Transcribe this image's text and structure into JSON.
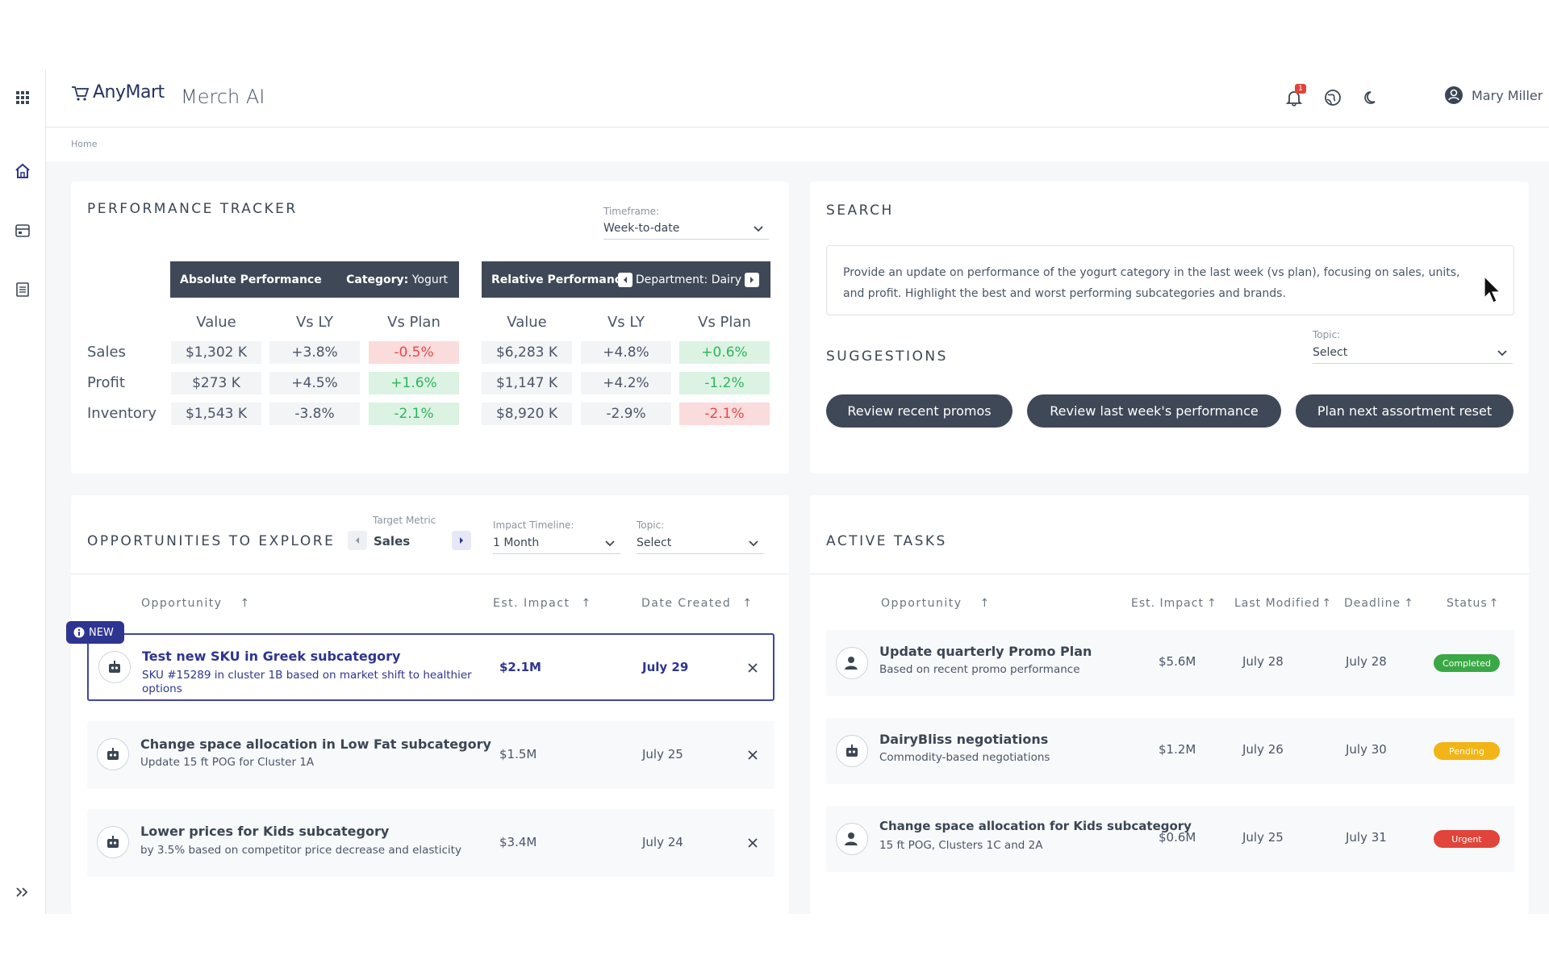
{
  "header": {
    "logo_text": "AnyMart",
    "app_name": "Merch AI",
    "notification_count": "1",
    "user_name": "Mary Miller"
  },
  "breadcrumb": {
    "home": "Home"
  },
  "performance": {
    "title": "PERFORMANCE TRACKER",
    "timeframe_label": "Timeframe:",
    "timeframe_value": "Week-to-date",
    "absolute": {
      "label": "Absolute Performance",
      "category_key": "Category:",
      "category_value": "Yogurt"
    },
    "relative": {
      "label": "Relative Performance",
      "department": "Department: Dairy"
    },
    "columns": [
      "Value",
      "Vs LY",
      "Vs Plan"
    ],
    "rows": [
      {
        "label": "Sales",
        "abs": [
          "$1,302 K",
          "+3.8%",
          "-0.5%"
        ],
        "rel": [
          "$6,283 K",
          "+4.8%",
          "+0.6%"
        ]
      },
      {
        "label": "Profit",
        "abs": [
          "$273 K",
          "+4.5%",
          "+1.6%"
        ],
        "rel": [
          "$1,147 K",
          "+4.2%",
          "-1.2%"
        ]
      },
      {
        "label": "Inventory",
        "abs": [
          "$1,543 K",
          "-3.8%",
          "-2.1%"
        ],
        "rel": [
          "$8,920 K",
          "-2.9%",
          "-2.1%"
        ]
      }
    ]
  },
  "search": {
    "title": "SEARCH",
    "query": "Provide an update on performance of the yogurt category in the last week (vs plan), focusing on sales, units, and profit. Highlight the best and worst performing subcategories and brands."
  },
  "suggestions": {
    "title": "SUGGESTIONS",
    "topic_label": "Topic:",
    "topic_value": "Select",
    "buttons": [
      "Review recent promos",
      "Review last week's performance",
      "Plan next assortment reset"
    ]
  },
  "opportunities": {
    "title": "OPPORTUNITIES TO EXPLORE",
    "target_metric_label": "Target Metric",
    "target_metric_value": "Sales",
    "timeline_label": "Impact Timeline:",
    "timeline_value": "1 Month",
    "topic_label": "Topic:",
    "topic_value": "Select",
    "headers": [
      "Opportunity",
      "Est. Impact",
      "Date Created"
    ],
    "new_badge": "NEW",
    "items": [
      {
        "title": "Test new SKU in Greek subcategory",
        "sub1": "SKU #15289 in cluster 1B based on market shift to healthier",
        "sub2": "options",
        "impact": "$2.1M",
        "date": "July 29"
      },
      {
        "title": "Change space allocation in Low Fat subcategory",
        "sub1": "Update 15 ft POG for Cluster 1A",
        "sub2": "",
        "impact": "$1.5M",
        "date": "July 25"
      },
      {
        "title": "Lower prices for Kids subcategory",
        "sub1": "by 3.5% based on competitor price decrease and elasticity",
        "sub2": "",
        "impact": "$3.4M",
        "date": "July 24"
      }
    ]
  },
  "tasks": {
    "title": "ACTIVE TASKS",
    "headers": [
      "Opportunity",
      "Est. Impact",
      "Last Modified",
      "Deadline",
      "Status"
    ],
    "items": [
      {
        "title": "Update quarterly Promo Plan",
        "sub": "Based on recent promo performance",
        "impact": "$5.6M",
        "modified": "July 28",
        "deadline": "July 28",
        "status": "Completed",
        "status_color": "#3aa845"
      },
      {
        "title": "DairyBliss negotiations",
        "sub": "Commodity-based negotiations",
        "impact": "$1.2M",
        "modified": "July 26",
        "deadline": "July 30",
        "status": "Pending",
        "status_color": "#f2b416"
      },
      {
        "title": "Change space allocation for Kids subcategory",
        "sub": "15 ft POG, Clusters 1C and 2A",
        "impact": "$0.6M",
        "modified": "July 25",
        "deadline": "July 31",
        "status": "Urgent",
        "status_color": "#e0443a"
      }
    ]
  }
}
